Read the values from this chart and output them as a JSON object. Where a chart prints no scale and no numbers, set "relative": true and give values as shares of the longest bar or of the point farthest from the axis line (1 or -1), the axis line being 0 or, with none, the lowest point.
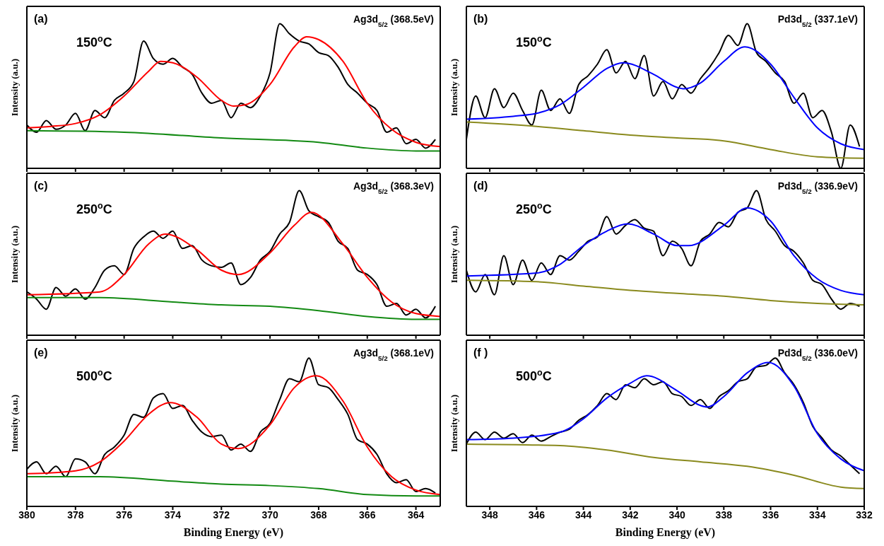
{
  "chart_data": [
    {
      "type": "line",
      "relative": true,
      "ylabel": "Intensity (a.u.)",
      "xlim": [
        380,
        363
      ],
      "xticks": [
        380,
        378,
        376,
        374,
        372,
        370,
        368,
        366,
        364
      ],
      "tick_labels": false,
      "annotations": [
        "(a)",
        "150$^{o}$C",
        "Ag3d$_{5/2}$ (368.5eV)"
      ],
      "series": [
        {
          "color": "#000000",
          "x": [
            380,
            379.6,
            379.2,
            378.8,
            378.4,
            378,
            377.6,
            377.2,
            376.8,
            376.4,
            376,
            375.6,
            375.2,
            374.8,
            374.4,
            374,
            373.6,
            373.2,
            372.8,
            372.4,
            372,
            371.6,
            371.2,
            370.8,
            370.4,
            370,
            369.6,
            369.2,
            368.8,
            368.4,
            368,
            367.6,
            367.2,
            366.8,
            366.4,
            366,
            365.6,
            365.2,
            364.8,
            364.4,
            364,
            363.6,
            363.2
          ],
          "values": [
            0.3,
            0.25,
            0.33,
            0.27,
            0.3,
            0.38,
            0.26,
            0.4,
            0.35,
            0.47,
            0.52,
            0.6,
            0.88,
            0.76,
            0.72,
            0.76,
            0.7,
            0.65,
            0.52,
            0.45,
            0.47,
            0.35,
            0.45,
            0.42,
            0.5,
            0.66,
            1.0,
            0.93,
            0.88,
            0.86,
            0.8,
            0.78,
            0.7,
            0.58,
            0.52,
            0.45,
            0.4,
            0.25,
            0.28,
            0.17,
            0.2,
            0.14,
            0.2
          ]
        },
        {
          "color": "#ff0000",
          "x": [
            380,
            379,
            378,
            377,
            376,
            375,
            374.5,
            374,
            373,
            372,
            371.5,
            371,
            370,
            369,
            368.5,
            368,
            367,
            366,
            365,
            364,
            363
          ],
          "values": [
            0.28,
            0.29,
            0.31,
            0.37,
            0.5,
            0.67,
            0.74,
            0.73,
            0.63,
            0.47,
            0.43,
            0.44,
            0.58,
            0.84,
            0.91,
            0.89,
            0.74,
            0.45,
            0.27,
            0.18,
            0.15
          ]
        },
        {
          "color": "#138a13",
          "x": [
            380,
            376,
            372,
            368,
            366,
            364,
            363
          ],
          "values": [
            0.26,
            0.25,
            0.21,
            0.18,
            0.14,
            0.12,
            0.12
          ]
        }
      ]
    },
    {
      "type": "line",
      "relative": true,
      "ylabel": "Intensity (a.u.)",
      "xlim": [
        349,
        332
      ],
      "xticks": [
        348,
        346,
        344,
        342,
        340,
        338,
        336,
        334,
        332
      ],
      "tick_labels": false,
      "annotations": [
        "(b)",
        "150$^{o}$C",
        "Pd3d$_{5/2}$ (337.1eV)"
      ],
      "series": [
        {
          "color": "#000000",
          "x": [
            349,
            348.6,
            348.2,
            347.8,
            347.4,
            347,
            346.6,
            346.2,
            345.8,
            345.4,
            345,
            344.6,
            344.2,
            343.8,
            343.4,
            343,
            342.6,
            342.2,
            341.8,
            341.4,
            341,
            340.6,
            340.2,
            339.8,
            339.4,
            339,
            338.6,
            338.2,
            337.8,
            337.4,
            337,
            336.6,
            336.2,
            335.8,
            335.4,
            335,
            334.6,
            334.2,
            333.8,
            333.4,
            333,
            332.6,
            332.2
          ],
          "values": [
            0.2,
            0.5,
            0.35,
            0.55,
            0.42,
            0.52,
            0.4,
            0.3,
            0.54,
            0.4,
            0.48,
            0.38,
            0.58,
            0.64,
            0.72,
            0.82,
            0.66,
            0.74,
            0.62,
            0.78,
            0.5,
            0.6,
            0.48,
            0.58,
            0.52,
            0.62,
            0.7,
            0.8,
            0.92,
            0.85,
            1.0,
            0.8,
            0.74,
            0.66,
            0.6,
            0.45,
            0.52,
            0.35,
            0.4,
            0.25,
            0.0,
            0.3,
            0.15
          ]
        },
        {
          "color": "#0000ff",
          "x": [
            349,
            347,
            346,
            345,
            344,
            343,
            342.3,
            341,
            340,
            339.7,
            339,
            338,
            337.1,
            336,
            335,
            334,
            333,
            332
          ],
          "values": [
            0.34,
            0.36,
            0.38,
            0.44,
            0.56,
            0.69,
            0.73,
            0.65,
            0.56,
            0.55,
            0.59,
            0.74,
            0.84,
            0.72,
            0.49,
            0.28,
            0.17,
            0.13
          ]
        },
        {
          "color": "#8a8a1e",
          "x": [
            349,
            346,
            344,
            342,
            340,
            338,
            336,
            334,
            332
          ],
          "values": [
            0.32,
            0.29,
            0.26,
            0.23,
            0.21,
            0.19,
            0.13,
            0.08,
            0.07
          ]
        }
      ]
    },
    {
      "type": "line",
      "relative": true,
      "ylabel": "Intensity (a.u.)",
      "xlim": [
        380,
        363
      ],
      "xticks": [
        380,
        378,
        376,
        374,
        372,
        370,
        368,
        366,
        364
      ],
      "tick_labels": false,
      "annotations": [
        "(c)",
        "250$^{o}$C",
        "Ag3d$_{5/2}$ (368.3eV)"
      ],
      "series": [
        {
          "color": "#000000",
          "x": [
            380,
            379.6,
            379.2,
            378.8,
            378.4,
            378,
            377.6,
            377.2,
            376.8,
            376.4,
            376,
            375.6,
            375.2,
            374.8,
            374.4,
            374,
            373.6,
            373.2,
            372.8,
            372.4,
            372,
            371.6,
            371.2,
            370.8,
            370.4,
            370,
            369.6,
            369.2,
            368.8,
            368.4,
            368,
            367.6,
            367.2,
            366.8,
            366.4,
            366,
            365.6,
            365.2,
            364.8,
            364.4,
            364,
            363.6,
            363.2
          ],
          "values": [
            0.3,
            0.25,
            0.18,
            0.33,
            0.27,
            0.32,
            0.25,
            0.33,
            0.45,
            0.48,
            0.42,
            0.6,
            0.68,
            0.72,
            0.67,
            0.72,
            0.6,
            0.62,
            0.52,
            0.48,
            0.47,
            0.5,
            0.35,
            0.4,
            0.52,
            0.58,
            0.7,
            0.78,
            1.0,
            0.86,
            0.82,
            0.78,
            0.65,
            0.6,
            0.45,
            0.42,
            0.35,
            0.2,
            0.22,
            0.14,
            0.18,
            0.12,
            0.2
          ]
        },
        {
          "color": "#ff0000",
          "x": [
            380,
            377,
            376,
            375,
            374.3,
            373,
            372,
            371.3,
            370,
            369,
            368.3,
            367,
            366,
            365,
            364,
            363
          ],
          "values": [
            0.28,
            0.3,
            0.42,
            0.63,
            0.7,
            0.59,
            0.45,
            0.42,
            0.57,
            0.76,
            0.85,
            0.63,
            0.4,
            0.23,
            0.15,
            0.13
          ]
        },
        {
          "color": "#138a13",
          "x": [
            380,
            377,
            374,
            372,
            370,
            368,
            366,
            364,
            363
          ],
          "values": [
            0.26,
            0.26,
            0.23,
            0.21,
            0.2,
            0.17,
            0.13,
            0.11,
            0.11
          ]
        }
      ]
    },
    {
      "type": "line",
      "relative": true,
      "ylabel": "Intensity (a.u.)",
      "xlim": [
        349,
        332
      ],
      "xticks": [
        348,
        346,
        344,
        342,
        340,
        338,
        336,
        334,
        332
      ],
      "tick_labels": false,
      "annotations": [
        "(d)",
        "250$^{o}$C",
        "Pd3d$_{5/2}$ (336.9eV)"
      ],
      "series": [
        {
          "color": "#000000",
          "x": [
            349,
            348.6,
            348.2,
            347.8,
            347.4,
            347,
            346.6,
            346.2,
            345.8,
            345.4,
            345,
            344.6,
            344.2,
            343.8,
            343.4,
            343,
            342.6,
            342.2,
            341.8,
            341.4,
            341,
            340.6,
            340.2,
            339.8,
            339.4,
            339,
            338.6,
            338.2,
            337.8,
            337.4,
            337,
            336.6,
            336.2,
            335.8,
            335.4,
            335,
            334.6,
            334.2,
            333.8,
            333.4,
            333,
            332.6,
            332.2
          ],
          "values": [
            0.45,
            0.3,
            0.42,
            0.28,
            0.55,
            0.35,
            0.52,
            0.38,
            0.5,
            0.42,
            0.55,
            0.52,
            0.58,
            0.65,
            0.68,
            0.82,
            0.7,
            0.76,
            0.8,
            0.74,
            0.72,
            0.55,
            0.65,
            0.6,
            0.48,
            0.65,
            0.7,
            0.78,
            0.75,
            0.85,
            0.88,
            1.0,
            0.8,
            0.72,
            0.62,
            0.58,
            0.5,
            0.38,
            0.35,
            0.25,
            0.18,
            0.22,
            0.2
          ]
        },
        {
          "color": "#0000ff",
          "x": [
            349,
            346,
            345,
            344,
            343,
            342.1,
            341,
            340,
            339.5,
            338,
            337,
            336,
            335,
            334,
            333,
            332
          ],
          "values": [
            0.41,
            0.43,
            0.49,
            0.62,
            0.72,
            0.77,
            0.7,
            0.62,
            0.62,
            0.76,
            0.88,
            0.79,
            0.55,
            0.39,
            0.31,
            0.28
          ]
        },
        {
          "color": "#8a8a1e",
          "x": [
            349,
            346,
            344,
            342,
            340,
            338,
            336,
            334,
            332
          ],
          "values": [
            0.38,
            0.37,
            0.34,
            0.31,
            0.29,
            0.27,
            0.24,
            0.22,
            0.21
          ]
        }
      ]
    },
    {
      "type": "line",
      "relative": true,
      "ylabel": "Intensity (a.u.)",
      "xlabel": "Binding Energy (eV)",
      "xlim": [
        380,
        363
      ],
      "xticks": [
        380,
        378,
        376,
        374,
        372,
        370,
        368,
        366,
        364
      ],
      "tick_labels": "x",
      "annotations": [
        "(e)",
        "500$^{o}$C",
        "Ag3d$_{5/2}$ (368.1eV)"
      ],
      "series": [
        {
          "color": "#000000",
          "x": [
            380,
            379.6,
            379.2,
            378.8,
            378.4,
            378,
            377.6,
            377.2,
            376.8,
            376.4,
            376,
            375.6,
            375.2,
            374.8,
            374.4,
            374,
            373.6,
            373.2,
            372.8,
            372.4,
            372,
            371.6,
            371.2,
            370.8,
            370.4,
            370,
            369.6,
            369.2,
            368.8,
            368.4,
            368,
            367.6,
            367.2,
            366.8,
            366.4,
            366,
            365.6,
            365.2,
            364.8,
            364.4,
            364,
            363.6,
            363.2
          ],
          "values": [
            0.25,
            0.3,
            0.22,
            0.27,
            0.2,
            0.32,
            0.3,
            0.22,
            0.35,
            0.4,
            0.48,
            0.62,
            0.6,
            0.73,
            0.76,
            0.66,
            0.68,
            0.58,
            0.5,
            0.47,
            0.48,
            0.38,
            0.42,
            0.37,
            0.5,
            0.56,
            0.72,
            0.86,
            0.84,
            1.0,
            0.82,
            0.8,
            0.72,
            0.62,
            0.45,
            0.42,
            0.35,
            0.22,
            0.16,
            0.18,
            0.1,
            0.12,
            0.09
          ]
        },
        {
          "color": "#ff0000",
          "x": [
            380,
            378,
            377,
            376,
            375,
            374.1,
            373,
            372,
            371.3,
            370,
            369,
            368.1,
            367,
            366,
            365,
            364,
            363
          ],
          "values": [
            0.22,
            0.24,
            0.3,
            0.44,
            0.62,
            0.7,
            0.6,
            0.42,
            0.39,
            0.55,
            0.8,
            0.88,
            0.71,
            0.4,
            0.2,
            0.11,
            0.08
          ]
        },
        {
          "color": "#138a13",
          "x": [
            380,
            377,
            374,
            372,
            370,
            368,
            366,
            364,
            363
          ],
          "values": [
            0.2,
            0.2,
            0.17,
            0.15,
            0.14,
            0.12,
            0.08,
            0.07,
            0.07
          ]
        }
      ]
    },
    {
      "type": "line",
      "relative": true,
      "ylabel": "Intensity (a.u.)",
      "xlabel": "Binding Energy (eV)",
      "xlim": [
        349,
        332
      ],
      "xticks": [
        348,
        346,
        344,
        342,
        340,
        338,
        336,
        334,
        332
      ],
      "tick_labels": "x",
      "annotations": [
        "(f )",
        "500$^{o}$C",
        "Pd3d$_{5/2}$ (336.0eV)"
      ],
      "series": [
        {
          "color": "#000000",
          "x": [
            349,
            348.6,
            348.2,
            347.8,
            347.4,
            347,
            346.6,
            346.2,
            345.8,
            345.4,
            345,
            344.6,
            344.2,
            343.8,
            343.4,
            343,
            342.6,
            342.2,
            341.8,
            341.4,
            341,
            340.6,
            340.2,
            339.8,
            339.4,
            339,
            338.6,
            338.2,
            337.8,
            337.4,
            337,
            336.6,
            336.2,
            335.8,
            335.4,
            335,
            334.6,
            334.2,
            333.8,
            333.4,
            333,
            332.6,
            332.2
          ],
          "values": [
            0.42,
            0.5,
            0.45,
            0.5,
            0.46,
            0.49,
            0.43,
            0.48,
            0.44,
            0.47,
            0.5,
            0.52,
            0.58,
            0.62,
            0.68,
            0.76,
            0.72,
            0.82,
            0.8,
            0.86,
            0.82,
            0.84,
            0.76,
            0.74,
            0.68,
            0.72,
            0.66,
            0.74,
            0.78,
            0.84,
            0.86,
            0.94,
            0.95,
            1.0,
            0.9,
            0.82,
            0.7,
            0.54,
            0.46,
            0.38,
            0.34,
            0.28,
            0.22
          ]
        },
        {
          "color": "#0000ff",
          "x": [
            349,
            347,
            345,
            344,
            343,
            342,
            341.3,
            340,
            339,
            338.7,
            338,
            337,
            336.1,
            335,
            334,
            333,
            332
          ],
          "values": [
            0.45,
            0.46,
            0.5,
            0.59,
            0.73,
            0.83,
            0.88,
            0.78,
            0.68,
            0.67,
            0.74,
            0.9,
            0.97,
            0.81,
            0.49,
            0.32,
            0.24
          ]
        },
        {
          "color": "#8a8a1e",
          "x": [
            349,
            345,
            343,
            341,
            339,
            337,
            335,
            333,
            332
          ],
          "values": [
            0.42,
            0.41,
            0.38,
            0.33,
            0.3,
            0.27,
            0.21,
            0.13,
            0.12
          ]
        }
      ]
    }
  ]
}
